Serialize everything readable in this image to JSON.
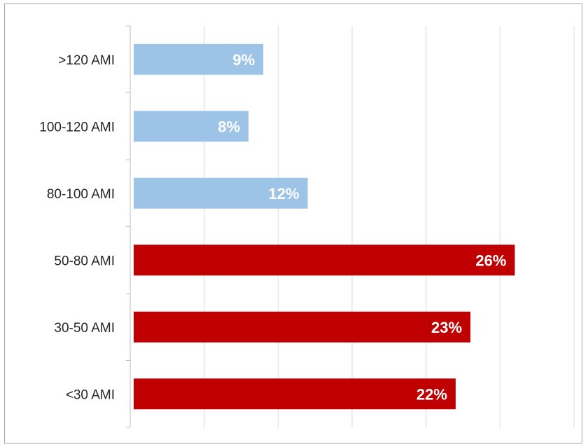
{
  "chart_data": {
    "type": "bar",
    "orientation": "horizontal",
    "categories": [
      ">120 AMI",
      "100-120 AMI",
      "80-100 AMI",
      "50-80 AMI",
      "30-50 AMI",
      "<30 AMI"
    ],
    "values": [
      9,
      8,
      12,
      26,
      23,
      22
    ],
    "value_labels": [
      "9%",
      "8%",
      "12%",
      "26%",
      "23%",
      "22%"
    ],
    "bar_colors": [
      "#9dc3e6",
      "#9dc3e6",
      "#9dc3e6",
      "#c00000",
      "#c00000",
      "#c00000"
    ],
    "xlim": [
      0,
      30
    ],
    "x_gridline_step": 5,
    "grid": true,
    "x_tick_labels_shown": false,
    "legend": "none",
    "title": "",
    "xlabel": "",
    "ylabel": ""
  },
  "colors": {
    "light_bar": "#9dc3e6",
    "dark_bar": "#c00000",
    "gridline": "#d9d9d9",
    "axis": "#bfbfbf",
    "label_text": "#262626",
    "data_label_text": "#ffffff",
    "frame_border": "#a6a6a6"
  }
}
